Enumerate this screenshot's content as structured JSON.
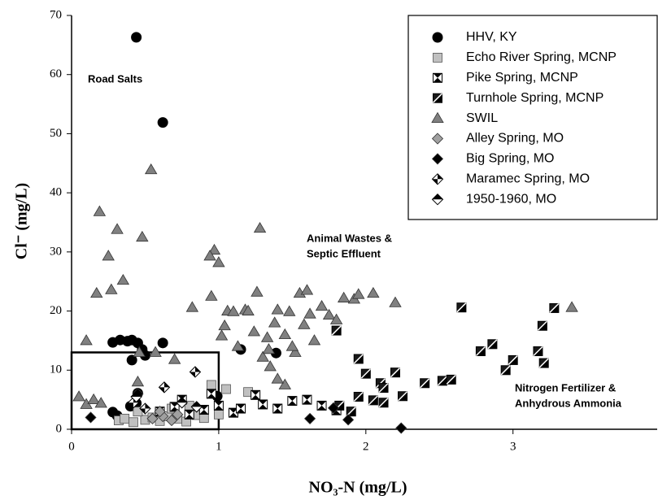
{
  "chart_data": {
    "type": "scatter",
    "x_label": "NO₃-N (mg/L)",
    "y_label": "Cl⁻ (mg/L)",
    "xlim": [
      0,
      3.98
    ],
    "ylim": [
      0,
      70
    ],
    "xticks": [
      0,
      1,
      2,
      3
    ],
    "yticks": [
      0,
      10,
      20,
      30,
      40,
      50,
      60,
      70
    ],
    "annotations": [
      "Road Salts",
      "Animal Wastes &",
      "Septic Effluent",
      "Nitrogen Fertilizer &",
      "Anhydrous Ammonia"
    ],
    "highlight_box": {
      "x": [
        0,
        1
      ],
      "y": [
        0,
        13
      ]
    },
    "series": [
      {
        "name": "HHV, KY",
        "marker": "circle",
        "color": "#000000",
        "x": [
          0.44,
          0.62,
          0.28,
          0.33,
          0.38,
          0.41,
          0.45,
          0.48,
          0.62,
          0.41,
          0.5,
          1.15,
          1.39,
          0.28,
          0.44,
          0.45,
          0.4,
          0.99,
          0.31
        ],
        "values": [
          66.3,
          51.9,
          14.7,
          15.1,
          14.9,
          15.1,
          14.6,
          13.5,
          14.6,
          11.7,
          12.5,
          13.5,
          12.9,
          2.9,
          4.4,
          6.1,
          3.9,
          5.6,
          2.3
        ]
      },
      {
        "name": "Echo River Spring, MCNP",
        "marker": "square",
        "color": "#c0c0c0",
        "x": [
          0.32,
          0.36,
          0.42,
          0.5,
          0.55,
          0.6,
          0.65,
          0.72,
          0.78,
          0.85,
          0.95,
          1.05,
          1.2,
          0.9,
          1.0,
          0.45,
          0.68,
          0.8
        ],
        "values": [
          1.5,
          1.8,
          1.2,
          1.6,
          2.0,
          1.4,
          2.2,
          1.8,
          1.3,
          2.4,
          7.5,
          6.8,
          6.3,
          1.9,
          2.5,
          3.0,
          3.5,
          4.0
        ]
      },
      {
        "name": "Pike Spring, MCNP",
        "marker": "square-x",
        "color": "#000000",
        "x": [
          0.6,
          0.7,
          0.8,
          0.9,
          1.0,
          1.1,
          1.15,
          1.3,
          1.4,
          1.5,
          1.6,
          1.7,
          1.8,
          0.75,
          0.95,
          1.25
        ],
        "values": [
          3.0,
          3.8,
          2.5,
          3.3,
          4.0,
          2.8,
          3.5,
          4.2,
          3.5,
          4.8,
          5.0,
          4.0,
          3.2,
          5.0,
          6.0,
          5.8
        ]
      },
      {
        "name": "Turnhole Spring, MCNP",
        "marker": "square-half",
        "color": "#000000",
        "x": [
          1.8,
          1.95,
          2.0,
          2.1,
          2.12,
          2.2,
          2.25,
          2.4,
          2.52,
          2.58,
          2.65,
          2.78,
          2.86,
          2.95,
          3.0,
          3.17,
          3.2,
          3.21,
          3.28,
          1.95,
          2.05,
          2.12,
          1.9,
          1.82
        ],
        "values": [
          16.7,
          11.9,
          9.4,
          7.8,
          7.0,
          9.6,
          5.6,
          7.8,
          8.2,
          8.4,
          20.6,
          13.2,
          14.4,
          10.0,
          11.7,
          13.2,
          17.5,
          11.2,
          20.5,
          5.5,
          4.9,
          4.5,
          3.0,
          4.0
        ]
      },
      {
        "name": "SWIL",
        "marker": "triangle",
        "color": "#808080",
        "x": [
          0.1,
          0.17,
          0.19,
          0.25,
          0.27,
          0.31,
          0.35,
          0.48,
          0.54,
          0.57,
          0.7,
          0.82,
          0.95,
          0.97,
          1.0,
          0.94,
          1.02,
          1.04,
          1.06,
          1.1,
          1.13,
          1.18,
          1.24,
          1.26,
          1.28,
          1.3,
          1.33,
          1.38,
          1.4,
          1.45,
          1.48,
          1.52,
          1.55,
          1.58,
          1.6,
          1.62,
          1.65,
          1.7,
          1.75,
          1.8,
          1.85,
          1.92,
          1.95,
          2.05,
          2.2,
          3.4,
          1.35,
          1.45,
          1.4,
          0.05,
          0.1,
          0.15,
          0.2,
          0.45,
          0.46,
          1.5,
          1.2,
          1.34
        ],
        "values": [
          15,
          23,
          36.8,
          29.3,
          23.6,
          33.8,
          25.2,
          32.5,
          43.9,
          13,
          11.8,
          20.6,
          22.5,
          30.3,
          28.2,
          29.3,
          15.8,
          17.5,
          20,
          19.9,
          14,
          20.2,
          16.5,
          23.2,
          34,
          12.2,
          15.5,
          18,
          20.2,
          16,
          19.9,
          13,
          23,
          17.7,
          23.5,
          19.5,
          15,
          20.8,
          19.3,
          18.5,
          22.2,
          22,
          22.8,
          23,
          21.4,
          20.6,
          10.6,
          7.5,
          8.5,
          5.5,
          4.2,
          5,
          4.4,
          8,
          13,
          14,
          20,
          13.5
        ]
      },
      {
        "name": "Alley Spring, MO",
        "marker": "diamond",
        "color": "#a0a0a0",
        "x": [
          0.55,
          0.62,
          0.68,
          0.72,
          0.6
        ],
        "values": [
          1.8,
          2.2,
          1.5,
          2.5,
          3.0
        ]
      },
      {
        "name": "Big Spring, MO",
        "marker": "diamond",
        "color": "#000000",
        "x": [
          0.13,
          1.62,
          2.24,
          1.88,
          1.78,
          0.45
        ],
        "values": [
          2.0,
          1.8,
          0.2,
          1.6,
          3.6,
          6.0
        ]
      },
      {
        "name": "Maramec Spring, MO",
        "marker": "diamond-cross",
        "color": "#000000",
        "x": [
          0.63,
          0.84,
          0.42,
          0.5
        ],
        "values": [
          7.1,
          9.7,
          4.5,
          3.5
        ]
      },
      {
        "name": "1950-1960, MO",
        "marker": "diamond-half",
        "color": "#000000",
        "x": [
          0.44,
          0.75,
          0.85
        ],
        "values": [
          5.5,
          4.5,
          3.8
        ]
      }
    ]
  }
}
